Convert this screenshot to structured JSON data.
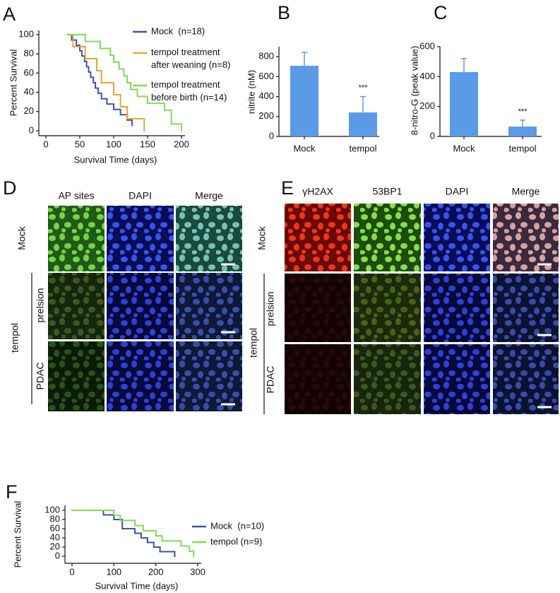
{
  "chart_data": [
    {
      "type": "step",
      "panel_label": "A",
      "xlabel": "Survival Time (days)",
      "ylabel": "Percent Survival",
      "xlim": [
        0,
        200
      ],
      "xticks": [
        0,
        50,
        100,
        150,
        200
      ],
      "ylim": [
        0,
        100
      ],
      "yticks": [
        0,
        20,
        40,
        60,
        80,
        100
      ],
      "series": [
        {
          "name": "Mock  (n=18)",
          "color": "#3b55a8",
          "x": [
            32,
            38,
            45,
            50,
            53,
            57,
            60,
            63,
            66,
            70,
            73,
            77,
            82,
            90,
            100,
            110,
            120,
            127
          ],
          "values": [
            100,
            94.4,
            88.9,
            83.3,
            77.8,
            72.2,
            66.7,
            61.1,
            55.6,
            50,
            44.4,
            38.9,
            33.3,
            27.8,
            22.2,
            16.7,
            11.1,
            5.6
          ]
        },
        {
          "name": "tempol treatment\nafter weaning (n=8)",
          "color": "#f0a233",
          "x": [
            32,
            40,
            58,
            75,
            82,
            100,
            110,
            120,
            145
          ],
          "values": [
            100,
            87.5,
            75,
            62.5,
            50,
            37.5,
            25,
            12.5,
            0
          ]
        },
        {
          "name": "tempol treatment\nbefore birth (n=14)",
          "color": "#7fdc55",
          "x": [
            32,
            58,
            80,
            95,
            100,
            108,
            115,
            120,
            125,
            135,
            150,
            175,
            185,
            200
          ],
          "values": [
            100,
            92.9,
            85.7,
            78.6,
            71.4,
            64.3,
            57.1,
            50,
            42.9,
            35.7,
            28.6,
            21.4,
            7.1,
            0
          ]
        }
      ]
    },
    {
      "type": "bar",
      "panel_label": "B",
      "ylabel": "nitrite (nM)",
      "categories": [
        "Mock",
        "tempol"
      ],
      "values": [
        708,
        240
      ],
      "errors": [
        135,
        160
      ],
      "color": "#5a9ae6",
      "ylim": [
        0,
        900
      ],
      "yticks": [
        0,
        200,
        400,
        600,
        800
      ],
      "annotations": [
        {
          "text": "***",
          "category": "tempol"
        }
      ]
    },
    {
      "type": "bar",
      "panel_label": "C",
      "ylabel": "8-nitro-G (peak value)",
      "categories": [
        "Mock",
        "tempol"
      ],
      "values": [
        430,
        66
      ],
      "errors": [
        90,
        43
      ],
      "color": "#5a9ae6",
      "ylim": [
        0,
        600
      ],
      "yticks": [
        0,
        200,
        400,
        600
      ],
      "annotations": [
        {
          "text": "***",
          "category": "tempol"
        }
      ]
    },
    {
      "type": "step",
      "panel_label": "F",
      "xlabel": "Survival Time (days)",
      "ylabel": "Percent Survival",
      "xlim": [
        0,
        300
      ],
      "xticks": [
        0,
        100,
        200,
        300
      ],
      "ylim": [
        0,
        100
      ],
      "yticks": [
        0,
        20,
        40,
        60,
        80,
        100
      ],
      "series": [
        {
          "name": "Mock  (n=10)",
          "color": "#3b55a8",
          "x": [
            0,
            75,
            100,
            120,
            150,
            165,
            180,
            195,
            210,
            245
          ],
          "values": [
            100,
            90,
            80,
            60,
            50,
            40,
            30,
            20,
            10,
            0
          ]
        },
        {
          "name": "tempol (n=9)",
          "color": "#7fdc55",
          "x": [
            0,
            100,
            115,
            150,
            170,
            200,
            215,
            260,
            280,
            290
          ],
          "values": [
            100,
            88.9,
            77.8,
            66.7,
            55.6,
            44.4,
            33.3,
            22.2,
            11.1,
            0
          ]
        }
      ]
    }
  ],
  "image_panels": [
    {
      "panel_label": "D",
      "columns": [
        "AP sites",
        "DAPI",
        "Merge"
      ],
      "rows": [
        "Mock",
        "prelsion",
        "PDAC"
      ],
      "group_label": "tempol"
    },
    {
      "panel_label": "E",
      "columns": [
        "γH2AX",
        "53BP1",
        "DAPI",
        "Merge"
      ],
      "rows": [
        "Mock",
        "prelsion",
        "PDAC"
      ],
      "group_label": "tempol"
    }
  ]
}
